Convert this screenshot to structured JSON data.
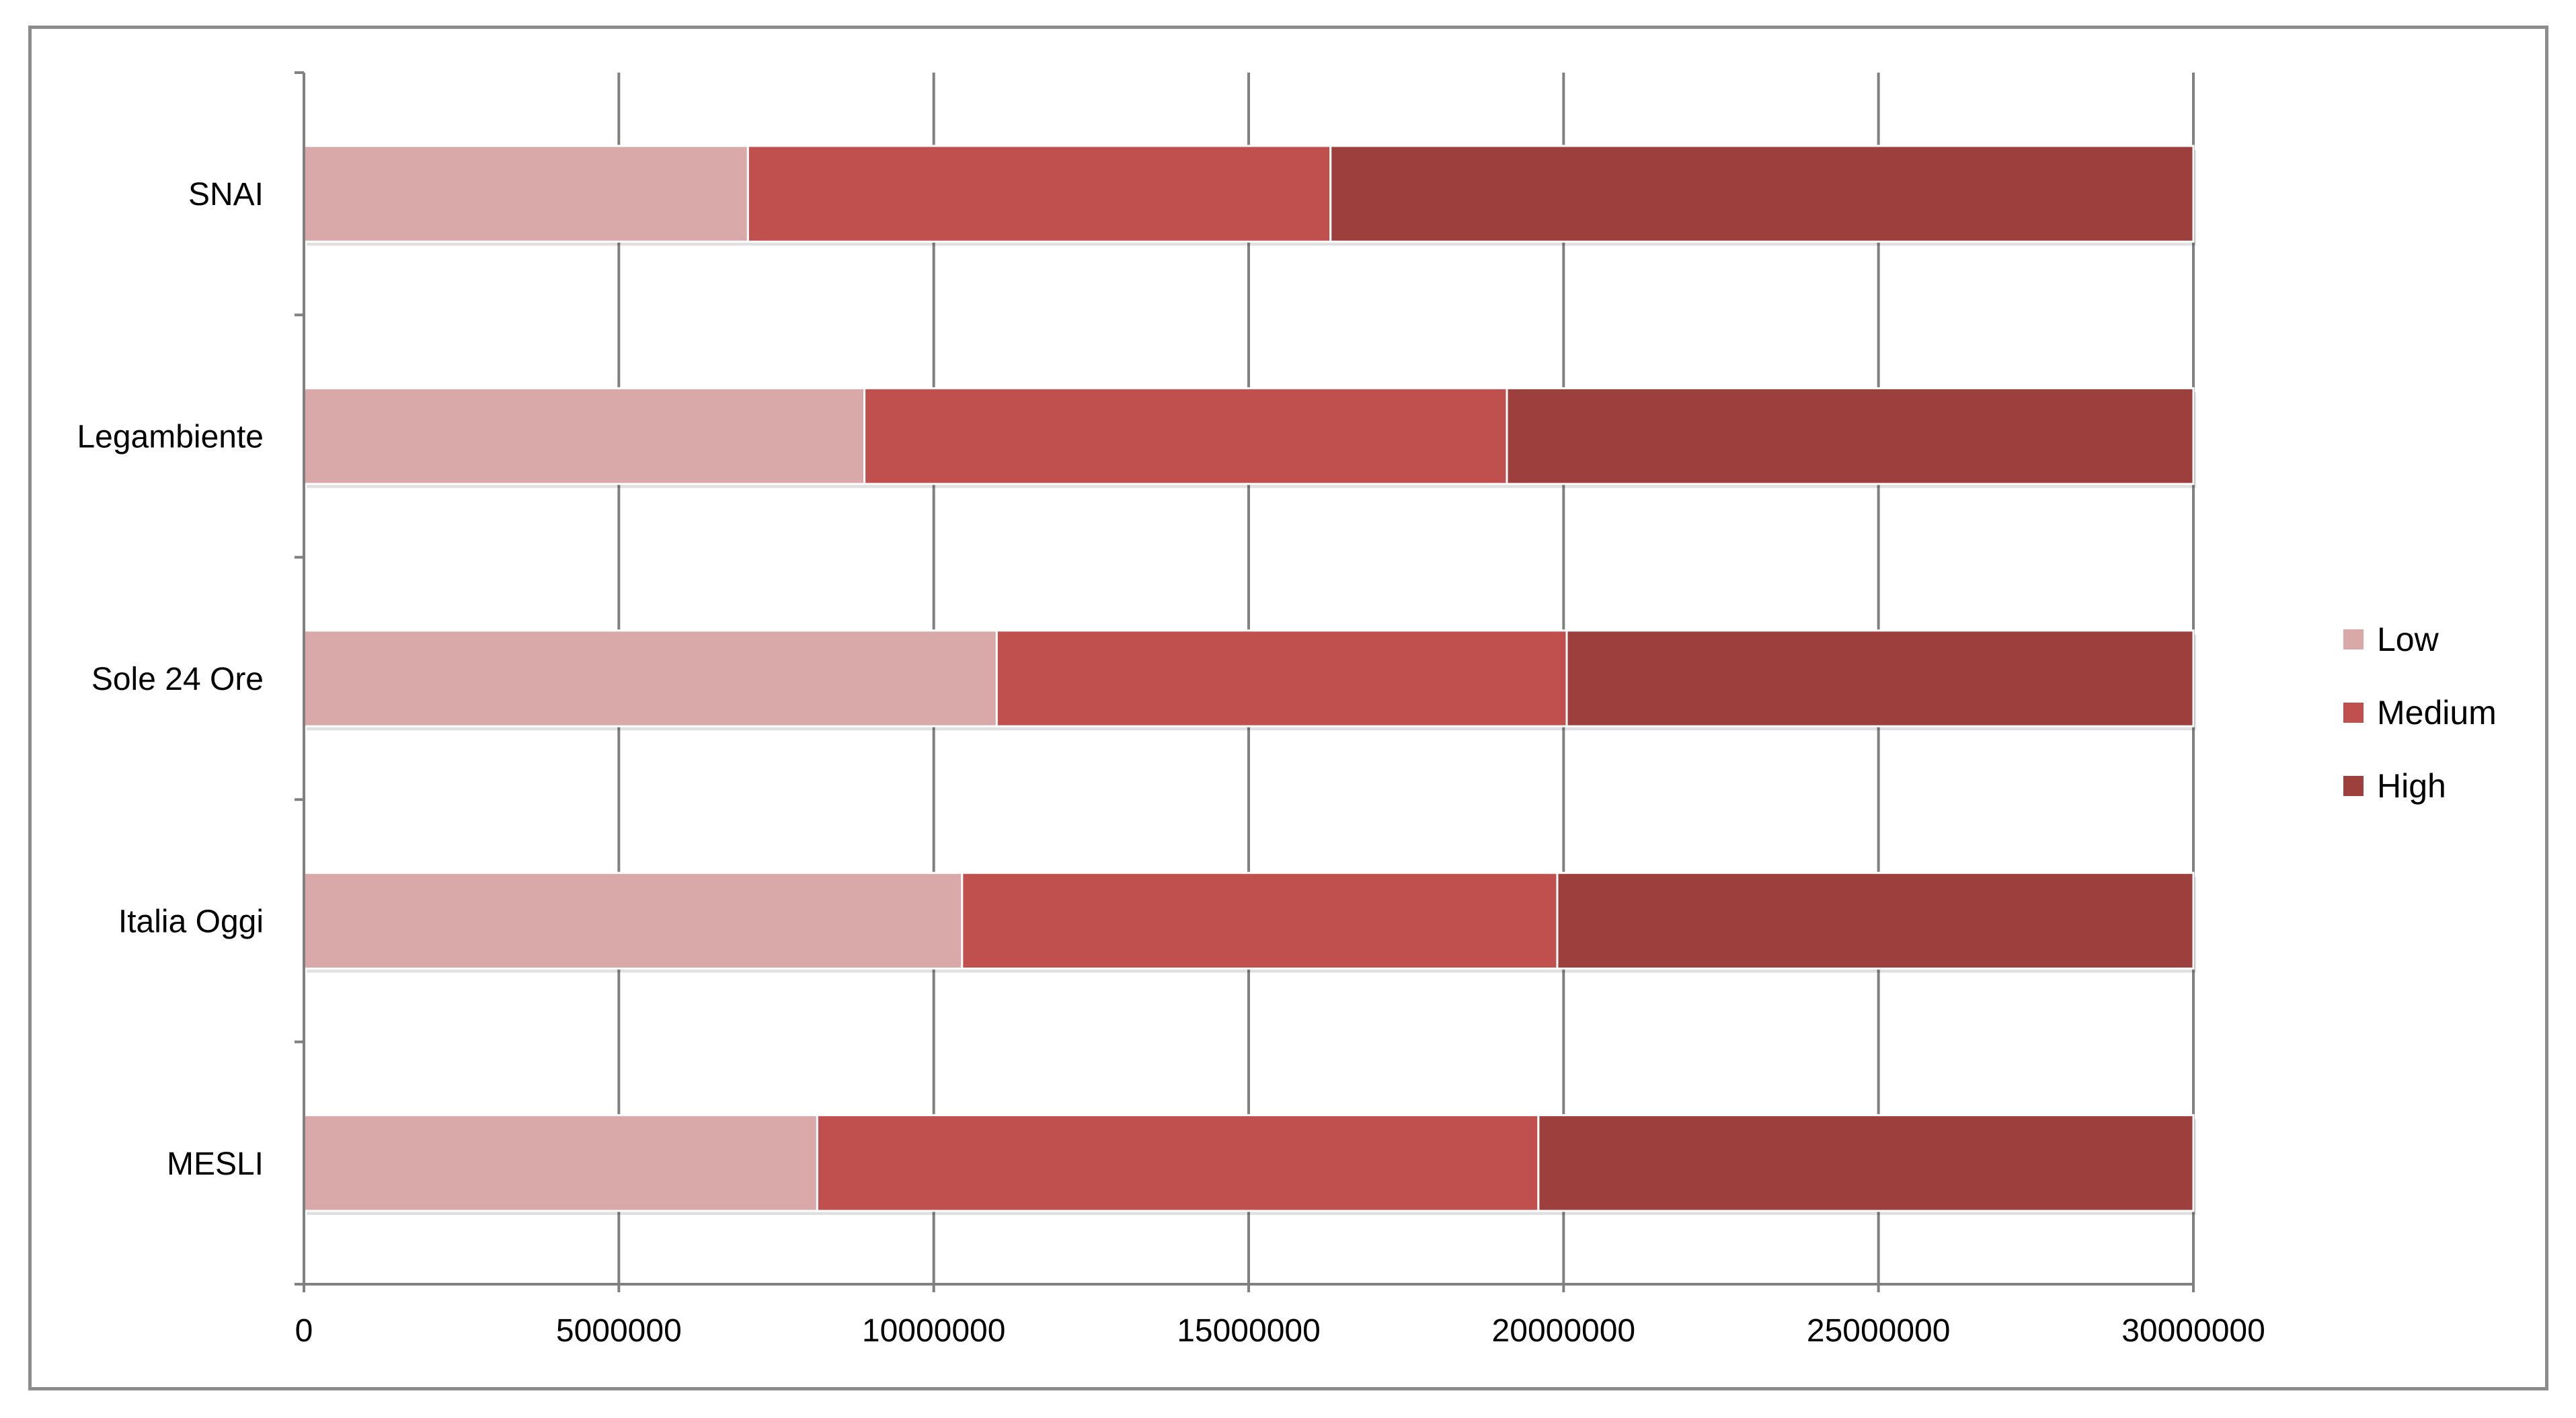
{
  "chart_data": {
    "type": "bar",
    "orientation": "horizontal",
    "stacked": true,
    "title": "",
    "xlabel": "",
    "ylabel": "",
    "categories": [
      "SNAI",
      "Legambiente",
      "Sole 24 Ore",
      "Italia Oggi",
      "MESLI"
    ],
    "series": [
      {
        "name": "Low",
        "color": "#d9a9a9",
        "values": [
          7050000,
          8900000,
          11000000,
          10450000,
          8150000
        ]
      },
      {
        "name": "Medium",
        "color": "#c0504d",
        "values": [
          9250000,
          10200000,
          9050000,
          9450000,
          11450000
        ]
      },
      {
        "name": "High",
        "color": "#9c3f3d",
        "values": [
          13700000,
          10900000,
          9950000,
          10100000,
          10400000
        ]
      }
    ],
    "xlim": [
      0,
      30000000
    ],
    "xticks": [
      "0",
      "5000000",
      "10000000",
      "15000000",
      "20000000",
      "25000000",
      "30000000"
    ],
    "grid": {
      "vertical": true,
      "color": "#808080"
    },
    "legend_position": "right"
  }
}
